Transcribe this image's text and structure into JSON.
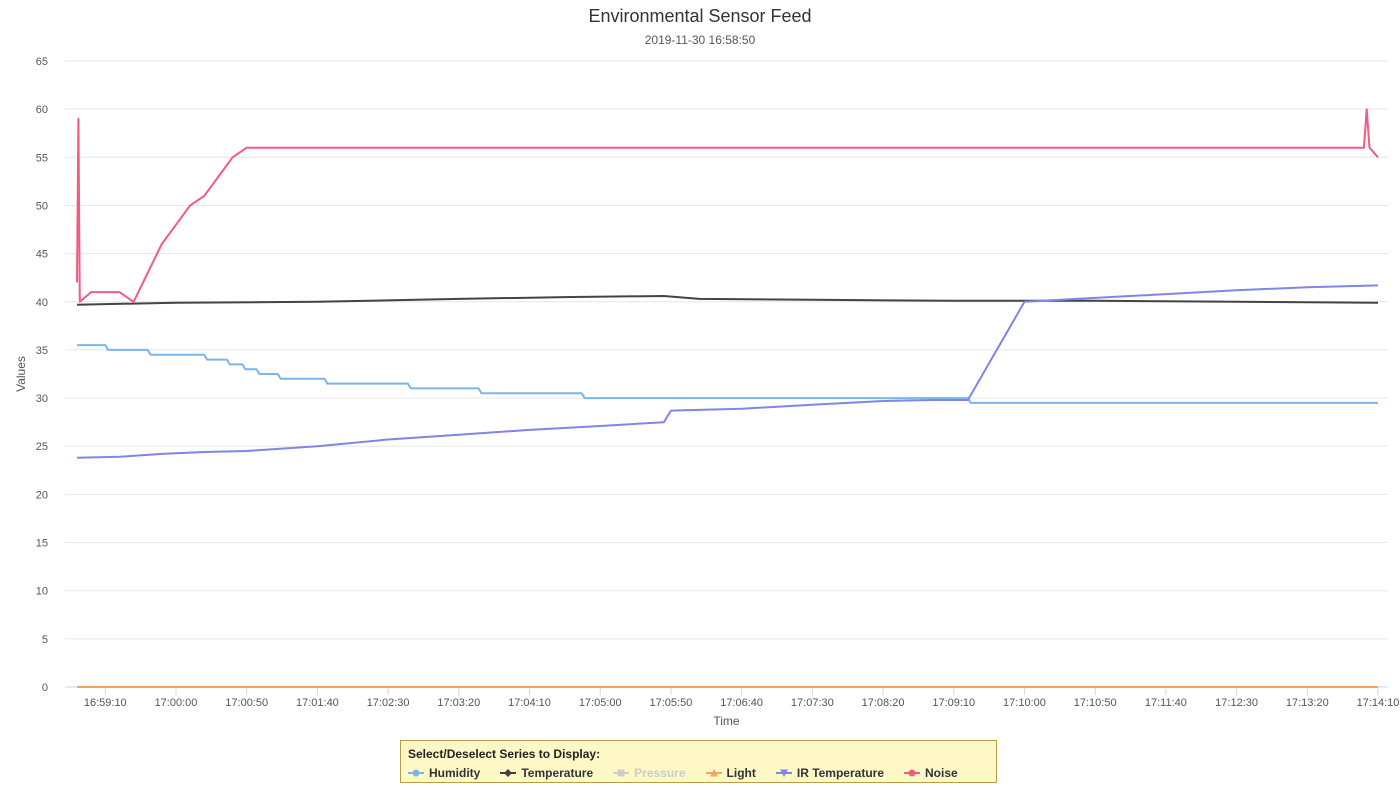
{
  "chart_data": {
    "type": "line",
    "title": "Environmental Sensor Feed",
    "subtitle": "2019-11-30 16:58:50",
    "xlabel": "Time",
    "ylabel": "Values",
    "ylim": [
      0,
      65
    ],
    "yticks": [
      0,
      5,
      10,
      15,
      20,
      25,
      30,
      35,
      40,
      45,
      50,
      55,
      60,
      65
    ],
    "xlim": [
      "16:58:50",
      "17:14:10"
    ],
    "xticks": [
      "16:59:10",
      "17:00:00",
      "17:00:50",
      "17:01:40",
      "17:02:30",
      "17:03:20",
      "17:04:10",
      "17:05:00",
      "17:05:50",
      "17:06:40",
      "17:07:30",
      "17:08:20",
      "17:09:10",
      "17:10:00",
      "17:10:50",
      "17:11:40",
      "17:12:30",
      "17:13:20",
      "17:14:10"
    ],
    "grid": true,
    "series": [
      {
        "name": "Humidity",
        "color": "#7cb5ec",
        "marker": "circle",
        "visible": true,
        "points": [
          [
            "16:58:50",
            35.5
          ],
          [
            "16:59:10",
            35.5
          ],
          [
            "16:59:12",
            35.0
          ],
          [
            "16:59:40",
            35.0
          ],
          [
            "16:59:42",
            34.5
          ],
          [
            "17:00:20",
            34.5
          ],
          [
            "17:00:22",
            34.0
          ],
          [
            "17:00:36",
            34.0
          ],
          [
            "17:00:38",
            33.5
          ],
          [
            "17:00:47",
            33.5
          ],
          [
            "17:00:49",
            33.0
          ],
          [
            "17:00:57",
            33.0
          ],
          [
            "17:00:59",
            32.5
          ],
          [
            "17:01:12",
            32.5
          ],
          [
            "17:01:14",
            32.0
          ],
          [
            "17:01:45",
            32.0
          ],
          [
            "17:01:47",
            31.5
          ],
          [
            "17:02:44",
            31.5
          ],
          [
            "17:02:46",
            31.0
          ],
          [
            "17:03:34",
            31.0
          ],
          [
            "17:03:36",
            30.5
          ],
          [
            "17:04:47",
            30.5
          ],
          [
            "17:04:49",
            30.0
          ],
          [
            "17:09:20",
            30.0
          ],
          [
            "17:09:22",
            29.5
          ],
          [
            "17:14:10",
            29.5
          ]
        ]
      },
      {
        "name": "Temperature",
        "color": "#434348",
        "marker": "diamond",
        "visible": true,
        "points": [
          [
            "16:58:50",
            39.7
          ],
          [
            "17:00:00",
            39.9
          ],
          [
            "17:01:40",
            40.0
          ],
          [
            "17:03:20",
            40.3
          ],
          [
            "17:04:40",
            40.5
          ],
          [
            "17:05:45",
            40.6
          ],
          [
            "17:06:10",
            40.3
          ],
          [
            "17:07:30",
            40.2
          ],
          [
            "17:09:10",
            40.1
          ],
          [
            "17:10:50",
            40.1
          ],
          [
            "17:12:30",
            40.0
          ],
          [
            "17:14:10",
            39.9
          ]
        ]
      },
      {
        "name": "Pressure",
        "color": "#cccccc",
        "marker": "square",
        "visible": false,
        "points": []
      },
      {
        "name": "Light",
        "color": "#f7a35c",
        "marker": "triangle",
        "visible": true,
        "points": [
          [
            "16:58:50",
            0
          ],
          [
            "17:14:10",
            0
          ]
        ]
      },
      {
        "name": "IR Temperature",
        "color": "#8085e9",
        "marker": "triangle-down",
        "visible": true,
        "points": [
          [
            "16:58:50",
            23.8
          ],
          [
            "16:59:20",
            23.9
          ],
          [
            "16:59:50",
            24.2
          ],
          [
            "17:00:20",
            24.4
          ],
          [
            "17:00:50",
            24.5
          ],
          [
            "17:01:40",
            25.0
          ],
          [
            "17:02:30",
            25.7
          ],
          [
            "17:03:20",
            26.2
          ],
          [
            "17:04:10",
            26.7
          ],
          [
            "17:05:00",
            27.1
          ],
          [
            "17:05:45",
            27.5
          ],
          [
            "17:05:50",
            28.7
          ],
          [
            "17:06:40",
            28.9
          ],
          [
            "17:07:30",
            29.3
          ],
          [
            "17:08:20",
            29.7
          ],
          [
            "17:08:55",
            29.8
          ],
          [
            "17:09:10",
            29.8
          ],
          [
            "17:09:20",
            29.8
          ],
          [
            "17:10:00",
            40.0
          ],
          [
            "17:10:50",
            40.4
          ],
          [
            "17:11:40",
            40.8
          ],
          [
            "17:12:30",
            41.2
          ],
          [
            "17:13:20",
            41.5
          ],
          [
            "17:14:10",
            41.7
          ]
        ]
      },
      {
        "name": "Noise",
        "color": "#f15c80",
        "marker": "circle",
        "visible": true,
        "points": [
          [
            "16:58:50",
            42
          ],
          [
            "16:58:51",
            59
          ],
          [
            "16:58:52",
            40
          ],
          [
            "16:59:00",
            41
          ],
          [
            "16:59:20",
            41
          ],
          [
            "16:59:30",
            40
          ],
          [
            "16:59:40",
            43
          ],
          [
            "16:59:50",
            46
          ],
          [
            "17:00:00",
            48
          ],
          [
            "17:00:10",
            50
          ],
          [
            "17:00:20",
            51
          ],
          [
            "17:00:30",
            53
          ],
          [
            "17:00:40",
            55
          ],
          [
            "17:00:50",
            56
          ],
          [
            "17:05:00",
            56
          ],
          [
            "17:09:10",
            56
          ],
          [
            "17:14:00",
            56
          ],
          [
            "17:14:02",
            60
          ],
          [
            "17:14:04",
            56
          ],
          [
            "17:14:10",
            55
          ]
        ]
      }
    ]
  },
  "legend": {
    "title": "Select/Deselect Series to Display:",
    "items": [
      {
        "label": "Humidity",
        "color": "#7cb5ec",
        "icon": "circle-marker-icon",
        "enabled": true
      },
      {
        "label": "Temperature",
        "color": "#434348",
        "icon": "diamond-marker-icon",
        "enabled": true
      },
      {
        "label": "Pressure",
        "color": "#cccccc",
        "icon": "square-marker-icon",
        "enabled": false
      },
      {
        "label": "Light",
        "color": "#f7a35c",
        "icon": "triangle-marker-icon",
        "enabled": true
      },
      {
        "label": "IR Temperature",
        "color": "#8085e9",
        "icon": "triangle-down-marker-icon",
        "enabled": true
      },
      {
        "label": "Noise",
        "color": "#f15c80",
        "icon": "circle-marker-icon",
        "enabled": true
      }
    ]
  }
}
